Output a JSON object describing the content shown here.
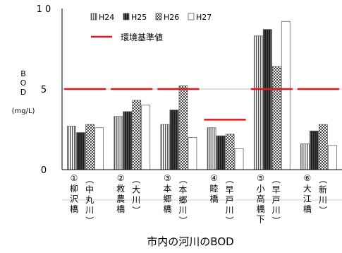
{
  "chart_data": {
    "type": "bar",
    "title": "市内の河川のBOD",
    "ylabel_lines": [
      "B",
      "O",
      "D"
    ],
    "yunit": "(mg/L)",
    "ylim": [
      0,
      10
    ],
    "yticks": [
      0,
      5,
      10
    ],
    "ytick_labels": [
      "0",
      "5",
      "1 0"
    ],
    "legend_position": "top-right",
    "categories": [
      {
        "marker": "①",
        "name": [
          "柳",
          "沢",
          "橋"
        ],
        "river": [
          "（",
          "中",
          "丸",
          "川",
          "）"
        ]
      },
      {
        "marker": "②",
        "name": [
          "救",
          "農",
          "橋"
        ],
        "river": [
          "（",
          "大",
          "川",
          "）"
        ]
      },
      {
        "marker": "③",
        "name": [
          "本",
          "郷",
          "橋"
        ],
        "river": [
          "（",
          "本",
          "郷",
          "川",
          "）"
        ]
      },
      {
        "marker": "④",
        "name": [
          "睦",
          "橋"
        ],
        "river": [
          "（",
          "早",
          "戸",
          "川",
          "）"
        ]
      },
      {
        "marker": "⑤",
        "name": [
          "小",
          "高",
          "橋",
          "下"
        ],
        "river": [
          "（",
          "早",
          "戸",
          "川",
          "）"
        ]
      },
      {
        "marker": "⑥",
        "name": [
          "大",
          "江",
          "橋"
        ],
        "river": [
          "（",
          "新",
          "川",
          "）"
        ]
      }
    ],
    "series": [
      {
        "name": "H24",
        "pattern": "vlines",
        "values": [
          2.7,
          3.3,
          2.8,
          2.6,
          8.3,
          1.6
        ]
      },
      {
        "name": "H25",
        "pattern": "dark",
        "values": [
          2.3,
          3.6,
          3.7,
          2.1,
          8.7,
          2.4
        ]
      },
      {
        "name": "H26",
        "pattern": "checker",
        "values": [
          2.8,
          4.3,
          5.2,
          2.2,
          6.4,
          2.8
        ]
      },
      {
        "name": "H27",
        "pattern": "white",
        "values": [
          2.6,
          4.0,
          2.0,
          1.3,
          9.2,
          1.5
        ]
      }
    ],
    "standard": {
      "name": "環境基準値",
      "color": "#e8141b",
      "values": [
        5,
        5,
        5,
        3.1,
        5,
        5
      ]
    }
  }
}
